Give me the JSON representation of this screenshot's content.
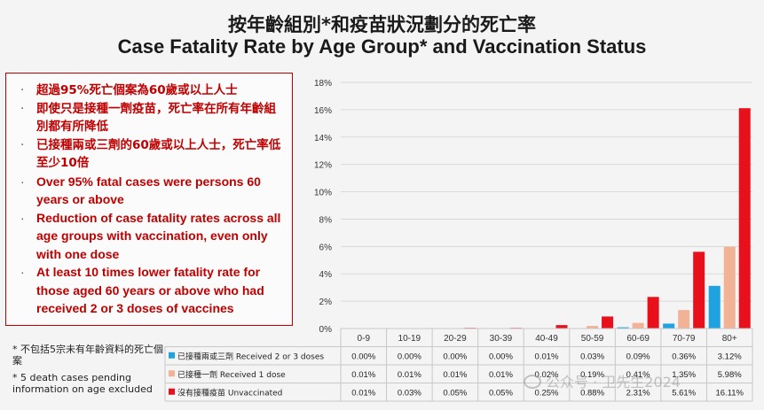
{
  "header": {
    "title_zh": "按年齡組別*和疫苗狀況劃分的死亡率",
    "title_en": "Case Fatality Rate by Age Group* and Vaccination Status"
  },
  "notes": {
    "bullet_symbol": "·",
    "items": [
      "超過95%死亡個案為60歲或以上人士",
      "即使只是接種一劑疫苗，死亡率在所有年齡組別都有所降低",
      "已接種兩或三劑的60歲或以上人士，死亡率低至少10倍",
      "Over 95% fatal cases were persons 60 years or above",
      "Reduction of case fatality rates across all age groups with vaccination, even only with one dose",
      "At least 10 times lower fatality rate for those aged 60 years or above who had received 2 or 3 doses of vaccines"
    ]
  },
  "footnote": {
    "zh": "* 不包括5宗未有年齡資料的死亡個案",
    "en": "* 5 death cases pending information on age excluded"
  },
  "watermark": "公众号 · 卫先生2024",
  "colors": {
    "two_or_three_doses": "#1fa3e0",
    "one_dose": "#f2b296",
    "unvaccinated": "#e8101a",
    "notes_border": "#c00000",
    "notes_text": "#c00000"
  },
  "chart_data": {
    "type": "bar",
    "title": "Case Fatality Rate by Age Group* and Vaccination Status",
    "categories": [
      "0-9",
      "10-19",
      "20-29",
      "30-39",
      "40-49",
      "50-59",
      "60-69",
      "70-79",
      "80+"
    ],
    "ylim": [
      0,
      18
    ],
    "yticks": [
      "0%",
      "2%",
      "4%",
      "6%",
      "8%",
      "10%",
      "12%",
      "14%",
      "16%",
      "18%"
    ],
    "grid": true,
    "legend_placement": "table-bottom-left",
    "series": [
      {
        "name": "已接種兩或三劑 Received 2 or 3 doses",
        "values": [
          0.0,
          0.0,
          0.0,
          0.0,
          0.01,
          0.03,
          0.09,
          0.36,
          3.12
        ],
        "labels": [
          "0.00%",
          "0.00%",
          "0.00%",
          "0.00%",
          "0.01%",
          "0.03%",
          "0.09%",
          "0.36%",
          "3.12%"
        ],
        "color": "#1fa3e0"
      },
      {
        "name": "已接種一劑 Received 1 dose",
        "values": [
          0.01,
          0.01,
          0.01,
          0.01,
          0.02,
          0.19,
          0.41,
          1.35,
          5.98
        ],
        "labels": [
          "0.01%",
          "0.01%",
          "0.01%",
          "0.01%",
          "0.02%",
          "0.19%",
          "0.41%",
          "1.35%",
          "5.98%"
        ],
        "color": "#f2b296"
      },
      {
        "name": "沒有接種疫苗 Unvaccinated",
        "values": [
          0.01,
          0.03,
          0.05,
          0.05,
          0.25,
          0.88,
          2.31,
          5.61,
          16.11
        ],
        "labels": [
          "0.01%",
          "0.03%",
          "0.05%",
          "0.05%",
          "0.25%",
          "0.88%",
          "2.31%",
          "5.61%",
          "16.11%"
        ],
        "color": "#e8101a"
      }
    ]
  }
}
